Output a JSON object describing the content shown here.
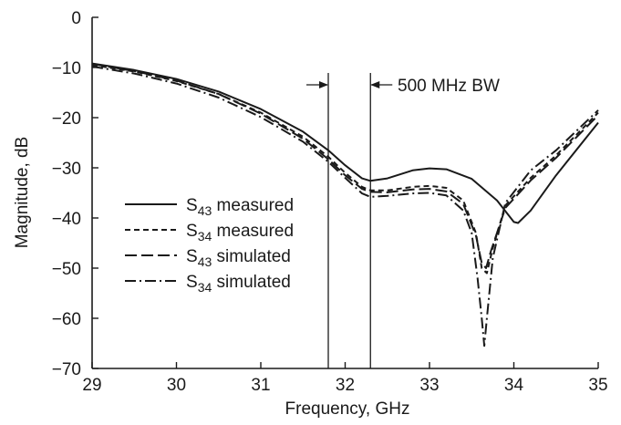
{
  "chart_data": {
    "type": "line",
    "xlabel": "Frequency, GHz",
    "ylabel": "Magnitude, dB",
    "xlim": [
      29,
      35
    ],
    "ylim": [
      -70,
      0
    ],
    "xticks": [
      29,
      30,
      31,
      32,
      33,
      34,
      35
    ],
    "yticks": [
      0,
      -10,
      -20,
      -30,
      -40,
      -50,
      -60,
      -70
    ],
    "xtick_labels": [
      "29",
      "30",
      "31",
      "32",
      "33",
      "34",
      "35"
    ],
    "ytick_labels": [
      "0",
      "−10",
      "−20",
      "−30",
      "−40",
      "−50",
      "−60",
      "−70"
    ],
    "grid": false,
    "legend_position": "left-middle",
    "annotation": {
      "text": "500 MHz BW",
      "x_markers": [
        31.8,
        32.3
      ]
    },
    "series": [
      {
        "name_base": "S",
        "name_sub": "43",
        "name_suffix": " measured",
        "style": "solid",
        "points": [
          [
            29,
            -9.2
          ],
          [
            29.5,
            -10.5
          ],
          [
            30,
            -12.3
          ],
          [
            30.5,
            -14.8
          ],
          [
            31,
            -18.3
          ],
          [
            31.5,
            -22.8
          ],
          [
            31.8,
            -26.5
          ],
          [
            32,
            -29.5
          ],
          [
            32.2,
            -32.1
          ],
          [
            32.3,
            -32.6
          ],
          [
            32.5,
            -32.1
          ],
          [
            32.8,
            -30.5
          ],
          [
            33,
            -30.1
          ],
          [
            33.2,
            -30.3
          ],
          [
            33.5,
            -32.2
          ],
          [
            33.8,
            -36.5
          ],
          [
            34,
            -40.8
          ],
          [
            34.05,
            -41.0
          ],
          [
            34.2,
            -38.5
          ],
          [
            34.5,
            -31.5
          ],
          [
            35,
            -21.0
          ]
        ]
      },
      {
        "name_base": "S",
        "name_sub": "34",
        "name_suffix": " measured",
        "style": "dashed",
        "points": [
          [
            29,
            -9.5
          ],
          [
            29.5,
            -10.8
          ],
          [
            30,
            -12.7
          ],
          [
            30.5,
            -15.3
          ],
          [
            31,
            -19.0
          ],
          [
            31.5,
            -23.8
          ],
          [
            31.8,
            -27.8
          ],
          [
            32,
            -31.0
          ],
          [
            32.2,
            -33.8
          ],
          [
            32.3,
            -34.5
          ],
          [
            32.5,
            -34.5
          ],
          [
            32.8,
            -33.8
          ],
          [
            33,
            -33.6
          ],
          [
            33.2,
            -34.0
          ],
          [
            33.4,
            -36.5
          ],
          [
            33.55,
            -43.0
          ],
          [
            33.62,
            -50.0
          ],
          [
            33.68,
            -51.0
          ],
          [
            33.75,
            -46.0
          ],
          [
            33.9,
            -37.5
          ],
          [
            34.2,
            -32.0
          ],
          [
            34.5,
            -27.5
          ],
          [
            35,
            -19.0
          ]
        ]
      },
      {
        "name_base": "S",
        "name_sub": "43",
        "name_suffix": " simulated",
        "style": "longdash",
        "points": [
          [
            29,
            -9.3
          ],
          [
            29.5,
            -10.7
          ],
          [
            30,
            -12.6
          ],
          [
            30.5,
            -15.3
          ],
          [
            31,
            -19.2
          ],
          [
            31.5,
            -24.2
          ],
          [
            31.8,
            -28.3
          ],
          [
            32,
            -31.5
          ],
          [
            32.2,
            -34.2
          ],
          [
            32.3,
            -34.8
          ],
          [
            32.5,
            -34.9
          ],
          [
            32.8,
            -34.3
          ],
          [
            33,
            -34.2
          ],
          [
            33.2,
            -34.7
          ],
          [
            33.4,
            -37.2
          ],
          [
            33.55,
            -43.5
          ],
          [
            33.62,
            -49.0
          ],
          [
            33.67,
            -50.0
          ],
          [
            33.73,
            -46.5
          ],
          [
            33.9,
            -38.0
          ],
          [
            34.2,
            -32.5
          ],
          [
            34.5,
            -28.0
          ],
          [
            35,
            -19.5
          ]
        ]
      },
      {
        "name_base": "S",
        "name_sub": "34",
        "name_suffix": " simulated",
        "style": "dashdot",
        "points": [
          [
            29,
            -9.8
          ],
          [
            29.5,
            -11.2
          ],
          [
            30,
            -13.2
          ],
          [
            30.5,
            -16.0
          ],
          [
            31,
            -19.9
          ],
          [
            31.5,
            -24.8
          ],
          [
            31.8,
            -28.8
          ],
          [
            32,
            -32.0
          ],
          [
            32.2,
            -35.1
          ],
          [
            32.3,
            -35.8
          ],
          [
            32.5,
            -35.6
          ],
          [
            32.8,
            -35.1
          ],
          [
            33,
            -35.0
          ],
          [
            33.2,
            -35.5
          ],
          [
            33.4,
            -38.5
          ],
          [
            33.5,
            -43.0
          ],
          [
            33.57,
            -52.0
          ],
          [
            33.62,
            -60.0
          ],
          [
            33.65,
            -65.5
          ],
          [
            33.68,
            -60.0
          ],
          [
            33.75,
            -48.0
          ],
          [
            33.9,
            -37.0
          ],
          [
            34.2,
            -30.5
          ],
          [
            34.5,
            -26.5
          ],
          [
            35,
            -18.5
          ]
        ]
      }
    ]
  }
}
